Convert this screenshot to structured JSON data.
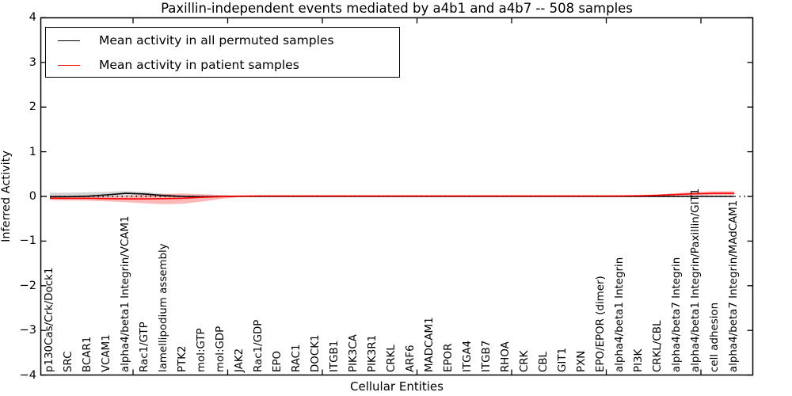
{
  "chart_data": {
    "type": "line",
    "title": "Paxillin-independent events mediated by a4b1 and a4b7 -- 508 samples",
    "xlabel": "Cellular Entities",
    "ylabel": "Inferred Activity",
    "ylim": [
      -4,
      4
    ],
    "ytick_labels": [
      "−4",
      "−3",
      "−2",
      "−1",
      "0",
      "1",
      "2",
      "3",
      "4"
    ],
    "grid": false,
    "zero_line": "dotted black at y=0",
    "legend_position": "upper left",
    "x_tick_label_rotation": 90,
    "categories": [
      "p130Cas/Crk/Dock1",
      "SRC",
      "BCAR1",
      "VCAM1",
      "alpha4/beta1 Integrin/VCAM1",
      "Rac1/GTP",
      "lamellipodium assembly",
      "PTK2",
      "mol:GTP",
      "mol:GDP",
      "JAK2",
      "Rac1/GDP",
      "EPO",
      "RAC1",
      "DOCK1",
      "ITGB1",
      "PIK3CA",
      "PIK3R1",
      "CRKL",
      "ARF6",
      "MADCAM1",
      "EPOR",
      "ITGA4",
      "ITGB7",
      "RHOA",
      "CRK",
      "CBL",
      "GIT1",
      "PXN",
      "EPO/EPOR (dimer)",
      "alpha4/beta1 Integrin",
      "PI3K",
      "CRKL/CBL",
      "alpha4/beta7 Integrin",
      "alpha4/beta1 Integrin/Paxillin/GIT1",
      "cell adhesion",
      "alpha4/beta7 Integrin/MAdCAM1"
    ],
    "series": [
      {
        "name": "Mean activity in all permuted samples",
        "color": "#000000",
        "band_alpha": 0.17,
        "values": [
          -0.005,
          -0.005,
          0.005,
          0.035,
          0.07,
          0.055,
          0.02,
          0,
          -0.005,
          0,
          0,
          0,
          0,
          0,
          0,
          0,
          0,
          0,
          0,
          0,
          0,
          0,
          0,
          0,
          0,
          0,
          0,
          0,
          0,
          0,
          0,
          0,
          0,
          0,
          0,
          0,
          0
        ],
        "band_upper": [
          0.085,
          0.085,
          0.09,
          0.105,
          0.12,
          0.1,
          0.06,
          0.025,
          0.012,
          0.006,
          0.005,
          0.005,
          0.005,
          0.005,
          0.005,
          0.005,
          0.005,
          0.005,
          0.005,
          0.005,
          0.005,
          0.005,
          0.005,
          0.005,
          0.005,
          0.005,
          0.005,
          0.005,
          0.005,
          0.005,
          0.005,
          0.005,
          0.005,
          0.005,
          0.005,
          0.005,
          0.005
        ],
        "band_lower": [
          -0.045,
          -0.04,
          -0.035,
          -0.02,
          0.01,
          0,
          -0.015,
          -0.02,
          -0.018,
          -0.008,
          -0.005,
          -0.005,
          -0.005,
          -0.005,
          -0.005,
          -0.005,
          -0.005,
          -0.005,
          -0.005,
          -0.005,
          -0.005,
          -0.005,
          -0.005,
          -0.005,
          -0.005,
          -0.005,
          -0.005,
          -0.005,
          -0.005,
          -0.005,
          -0.005,
          -0.005,
          -0.005,
          -0.005,
          -0.005,
          -0.005,
          -0.005
        ]
      },
      {
        "name": "Mean activity in patient samples",
        "color": "#ff0000",
        "band_alpha": 0.28,
        "values": [
          -0.04,
          -0.045,
          -0.045,
          -0.05,
          -0.055,
          -0.055,
          -0.05,
          -0.04,
          -0.02,
          -0.005,
          0.005,
          0.01,
          0.01,
          0.01,
          0.01,
          0.01,
          0.01,
          0.01,
          0.01,
          0.01,
          0.01,
          0.01,
          0.01,
          0.01,
          0.01,
          0.01,
          0.01,
          0.01,
          0.01,
          0.01,
          0.01,
          0.015,
          0.025,
          0.045,
          0.06,
          0.07,
          0.07
        ],
        "band_upper": [
          -0.01,
          -0.01,
          -0.005,
          0,
          0.01,
          0.03,
          0.055,
          0.065,
          0.05,
          0.03,
          0.022,
          0.02,
          0.02,
          0.02,
          0.02,
          0.02,
          0.02,
          0.02,
          0.02,
          0.02,
          0.02,
          0.02,
          0.02,
          0.02,
          0.02,
          0.02,
          0.02,
          0.02,
          0.02,
          0.022,
          0.025,
          0.03,
          0.045,
          0.075,
          0.1,
          0.115,
          0.115
        ],
        "band_lower": [
          -0.085,
          -0.09,
          -0.095,
          -0.11,
          -0.13,
          -0.155,
          -0.175,
          -0.165,
          -0.115,
          -0.055,
          -0.015,
          -0.002,
          0,
          0,
          0,
          0,
          0,
          0,
          0,
          0,
          0,
          0,
          0,
          0,
          0,
          0,
          0,
          0,
          0,
          0,
          0,
          0,
          0.003,
          0.015,
          0.025,
          0.03,
          0.03
        ]
      }
    ]
  }
}
